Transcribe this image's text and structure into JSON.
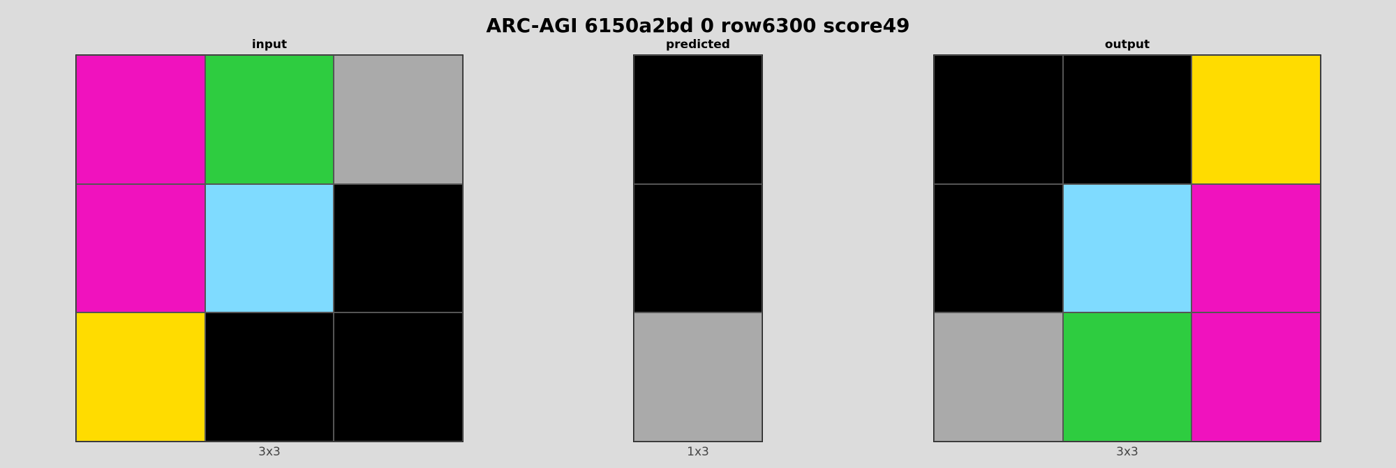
{
  "title": "ARC-AGI 6150a2bd 0 row6300 score49",
  "palette": {
    "0": "#000000",
    "1": "#0074d9",
    "2": "#ff4136",
    "3": "#2ecc40",
    "4": "#ffdc00",
    "5": "#aaaaaa",
    "6": "#f012be",
    "7": "#ff851b",
    "8": "#7fdbff",
    "9": "#870c25"
  },
  "panels": [
    {
      "label": "input",
      "size_label": "3x3",
      "rows": 3,
      "cols": 3,
      "cells": [
        [
          6,
          3,
          5
        ],
        [
          6,
          8,
          0
        ],
        [
          4,
          0,
          0
        ]
      ]
    },
    {
      "label": "predicted",
      "size_label": "1x3",
      "rows": 3,
      "cols": 1,
      "cells": [
        [
          0
        ],
        [
          0
        ],
        [
          5
        ]
      ]
    },
    {
      "label": "output",
      "size_label": "3x3",
      "rows": 3,
      "cols": 3,
      "cells": [
        [
          0,
          0,
          4
        ],
        [
          0,
          8,
          6
        ],
        [
          5,
          3,
          6
        ]
      ]
    }
  ]
}
